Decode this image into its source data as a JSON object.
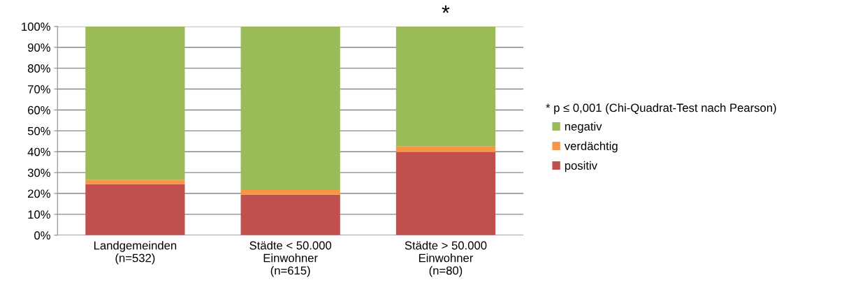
{
  "chart_data": {
    "type": "bar",
    "stacked": true,
    "categories": [
      "Landgemeinden\n(n=532)",
      "Städte < 50.000\nEinwohner\n(n=615)",
      "Städte > 50.000\nEinwohner\n(n=80)"
    ],
    "series": [
      {
        "name": "positiv",
        "color": "#c0504d",
        "values": [
          24.4,
          19.4,
          39.8
        ]
      },
      {
        "name": "verdächtig",
        "color": "#f79646",
        "values": [
          2.2,
          2.3,
          2.7
        ]
      },
      {
        "name": "negativ",
        "color": "#9bbb59",
        "values": [
          73.4,
          78.3,
          57.5
        ]
      }
    ],
    "ylim": [
      0,
      100
    ],
    "yticks": [
      {
        "value": 0,
        "label": "0%"
      },
      {
        "value": 10,
        "label": "10%"
      },
      {
        "value": 20,
        "label": "20%"
      },
      {
        "value": 30,
        "label": "30%"
      },
      {
        "value": 40,
        "label": "40%"
      },
      {
        "value": 50,
        "label": "50%"
      },
      {
        "value": 60,
        "label": "60%"
      },
      {
        "value": 70,
        "label": "70%"
      },
      {
        "value": 80,
        "label": "80%"
      },
      {
        "value": 90,
        "label": "90%"
      },
      {
        "value": 100,
        "label": "100%"
      }
    ],
    "grid": "y",
    "legend": "right",
    "annotations": [
      {
        "text": "*",
        "x": "Städte > 50.000\nEinwohner\n(n=80)",
        "y": 100
      },
      "* p ≤ 0,001 (Chi-Quadrat-Test nach Pearson)"
    ]
  }
}
